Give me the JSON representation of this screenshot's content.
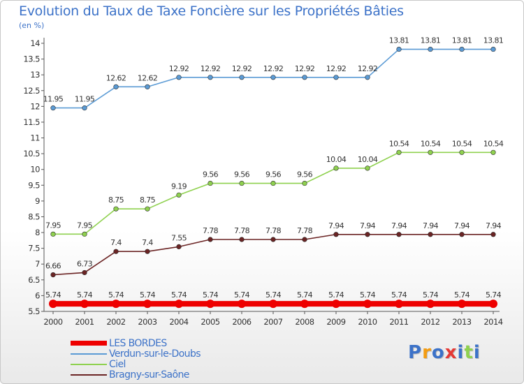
{
  "chart_data": {
    "type": "line",
    "title": "Evolution du Taux de Taxe Foncière sur les Propriétés Bâties",
    "ylabel": "(en %)",
    "xlabel": "",
    "ylim": [
      5.5,
      14
    ],
    "yticks": [
      "5.5",
      "6",
      "6.5",
      "7",
      "7.5",
      "8",
      "8.5",
      "9",
      "9.5",
      "10",
      "10.5",
      "11",
      "11.5",
      "12",
      "12.5",
      "13",
      "13.5",
      "14"
    ],
    "categories": [
      "2000",
      "2001",
      "2002",
      "2003",
      "2004",
      "2005",
      "2006",
      "2007",
      "2008",
      "2009",
      "2010",
      "2011",
      "2012",
      "2013",
      "2014"
    ],
    "grid": false,
    "legend_position": "bottom-left",
    "series": [
      {
        "name": "LES BORDES",
        "color": "#ee0000",
        "values": [
          5.74,
          5.74,
          5.74,
          5.74,
          5.74,
          5.74,
          5.74,
          5.74,
          5.74,
          5.74,
          5.74,
          5.74,
          5.74,
          5.74,
          5.74
        ],
        "labels": [
          "5.74",
          "5.74",
          "5.74",
          "5.74",
          "5.74",
          "5.74",
          "5.74",
          "5.74",
          "5.74",
          "5.74",
          "5.74",
          "5.74",
          "5.74",
          "5.74",
          "5.74"
        ]
      },
      {
        "name": "Verdun-sur-le-Doubs",
        "color": "#5b9bd5",
        "values": [
          11.95,
          11.95,
          12.62,
          12.62,
          12.92,
          12.92,
          12.92,
          12.92,
          12.92,
          12.92,
          12.92,
          13.81,
          13.81,
          13.81,
          13.81
        ],
        "labels": [
          "11.95",
          "11.95",
          "12.62",
          "12.62",
          "12.92",
          "12.92",
          "12.92",
          "12.92",
          "12.92",
          "12.92",
          "12.92",
          "13.81",
          "13.81",
          "13.81",
          "13.81"
        ]
      },
      {
        "name": "Ciel",
        "color": "#8fd14f",
        "values": [
          7.95,
          7.95,
          8.75,
          8.75,
          9.19,
          9.56,
          9.56,
          9.56,
          9.56,
          10.04,
          10.04,
          10.54,
          10.54,
          10.54,
          10.54
        ],
        "labels": [
          "7.95",
          "7.95",
          "8.75",
          "8.75",
          "9.19",
          "9.56",
          "9.56",
          "9.56",
          "9.56",
          "10.04",
          "10.04",
          "10.54",
          "10.54",
          "10.54",
          "10.54"
        ]
      },
      {
        "name": "Bragny-sur-Saône",
        "color": "#6b2424",
        "values": [
          6.66,
          6.73,
          7.4,
          7.4,
          7.55,
          7.78,
          7.78,
          7.78,
          7.78,
          7.94,
          7.94,
          7.94,
          7.94,
          7.94,
          7.94
        ],
        "labels": [
          "6.66",
          "6.73",
          "7.4",
          "7.4",
          "7.55",
          "7.78",
          "7.78",
          "7.78",
          "7.78",
          "7.94",
          "7.94",
          "7.94",
          "7.94",
          "7.94",
          "7.94"
        ]
      }
    ]
  },
  "logo": {
    "letters": [
      "P",
      "r",
      "o",
      "x",
      "i",
      "t",
      "i"
    ],
    "colors": [
      "#3c72c8",
      "#f39c12",
      "#3c72c8",
      "#e53935",
      "#3c72c8",
      "#8fd14f",
      "#3c72c8"
    ]
  }
}
